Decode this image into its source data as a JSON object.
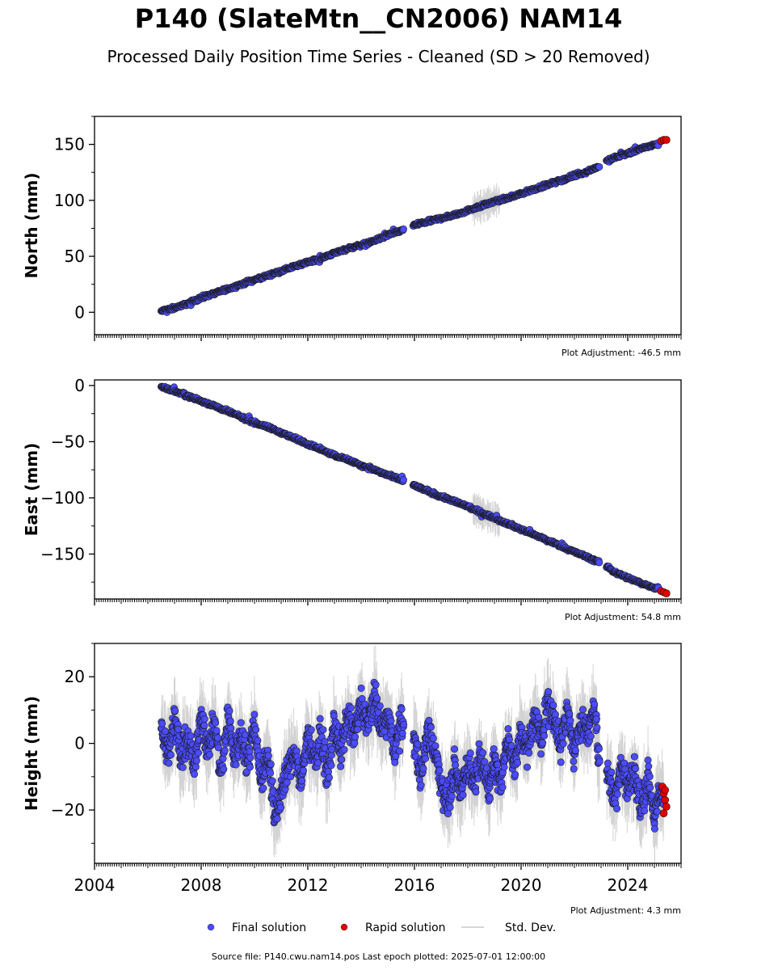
{
  "title": "P140 (SlateMtn__CN2006) NAM14",
  "subtitle": "Processed Daily Position Time Series - Cleaned (SD > 20 Removed)",
  "source_note": "Source file: P140.cwu.nam14.pos  Last epoch plotted: 2025-07-01 12:00:00",
  "colors": {
    "final": "#4b4bff",
    "rapid": "#e00000",
    "std_dev": "#b0b0b0",
    "marker_edge": "#1a1a1a"
  },
  "legend": {
    "placement": "bottom-center",
    "items": [
      {
        "label": "Final solution",
        "marker": "circle",
        "color": "#4b4bff"
      },
      {
        "label": "Rapid solution",
        "marker": "circle",
        "color": "#e00000"
      },
      {
        "label": "Std. Dev.",
        "marker": "line",
        "color": "#c8c8c8"
      }
    ]
  },
  "chart_data": [
    {
      "type": "scatter",
      "ylabel": "North (mm)",
      "xlabel": "",
      "xlim": [
        2004.0,
        2026.0
      ],
      "ylim": [
        -20,
        175
      ],
      "yticks": [
        0,
        50,
        100,
        150
      ],
      "ytick_labels": [
        "0",
        "50",
        "100",
        "150"
      ],
      "xticks": [
        2004,
        2008,
        2012,
        2016,
        2020,
        2024
      ],
      "xtick_labels": [],
      "adjustment": "Plot Adjustment: -46.5 mm",
      "series": [
        {
          "name": "Final solution",
          "x": [
            2006.5,
            2007.0,
            2007.5,
            2008.0,
            2008.5,
            2009.0,
            2009.5,
            2010.0,
            2010.5,
            2011.0,
            2011.5,
            2012.0,
            2012.5,
            2013.0,
            2013.5,
            2014.0,
            2014.5,
            2015.0,
            2015.5,
            2016.0,
            2016.5,
            2017.0,
            2017.5,
            2018.0,
            2018.5,
            2019.0,
            2019.5,
            2020.0,
            2020.5,
            2021.0,
            2021.5,
            2022.0,
            2022.5,
            2022.9,
            2023.2,
            2023.5,
            2024.0,
            2024.5,
            2025.0
          ],
          "y": [
            1,
            4,
            8,
            13,
            17,
            21,
            25,
            29,
            33,
            37,
            41,
            45,
            48,
            53,
            57,
            60,
            64,
            69,
            73,
            78,
            81,
            84,
            87,
            91,
            95,
            99,
            102,
            106,
            110,
            114,
            118,
            122,
            126,
            130,
            135,
            138,
            142,
            146,
            150
          ]
        },
        {
          "name": "Rapid solution",
          "x": [
            2025.25,
            2025.35,
            2025.45
          ],
          "y": [
            153,
            154,
            154
          ]
        }
      ],
      "gaps": [
        [
          2015.6,
          2015.95
        ],
        [
          2022.95,
          2023.2
        ]
      ]
    },
    {
      "type": "scatter",
      "ylabel": "East (mm)",
      "xlabel": "",
      "xlim": [
        2004.0,
        2026.0
      ],
      "ylim": [
        -190,
        5
      ],
      "yticks": [
        0,
        -50,
        -100,
        -150
      ],
      "ytick_labels": [
        "0",
        "−50",
        "−100",
        "−150"
      ],
      "xticks": [
        2004,
        2008,
        2012,
        2016,
        2020,
        2024
      ],
      "xtick_labels": [],
      "adjustment": "Plot Adjustment: 54.8 mm",
      "series": [
        {
          "name": "Final solution",
          "x": [
            2006.5,
            2007.0,
            2007.5,
            2008.0,
            2008.5,
            2009.0,
            2009.5,
            2010.0,
            2010.5,
            2011.0,
            2011.5,
            2012.0,
            2012.5,
            2013.0,
            2013.5,
            2014.0,
            2014.5,
            2015.0,
            2015.5,
            2016.0,
            2016.5,
            2017.0,
            2017.5,
            2018.0,
            2018.5,
            2019.0,
            2019.5,
            2020.0,
            2020.5,
            2021.0,
            2021.5,
            2022.0,
            2022.5,
            2022.9,
            2023.2,
            2023.5,
            2024.0,
            2024.5,
            2025.0
          ],
          "y": [
            -1,
            -5,
            -9,
            -14,
            -18,
            -23,
            -28,
            -33,
            -37,
            -42,
            -47,
            -52,
            -57,
            -62,
            -66,
            -71,
            -75,
            -80,
            -84,
            -89,
            -94,
            -99,
            -103,
            -108,
            -113,
            -118,
            -123,
            -128,
            -133,
            -138,
            -143,
            -148,
            -153,
            -157,
            -161,
            -166,
            -171,
            -176,
            -180
          ]
        },
        {
          "name": "Rapid solution",
          "x": [
            2025.25,
            2025.35,
            2025.45
          ],
          "y": [
            -183,
            -184,
            -185
          ]
        }
      ],
      "gaps": [
        [
          2015.6,
          2015.95
        ],
        [
          2022.95,
          2023.2
        ]
      ]
    },
    {
      "type": "scatter",
      "ylabel": "Height (mm)",
      "xlabel": "",
      "xlim": [
        2004.0,
        2026.0
      ],
      "ylim": [
        -36,
        30
      ],
      "yticks": [
        20,
        0,
        -20
      ],
      "ytick_labels": [
        "20",
        "0",
        "−20"
      ],
      "xticks": [
        2004,
        2008,
        2012,
        2016,
        2020,
        2024
      ],
      "xtick_labels": [
        "2004",
        "2008",
        "2012",
        "2016",
        "2020",
        "2024"
      ],
      "adjustment": "Plot Adjustment: 4.3 mm",
      "series": [
        {
          "name": "Final solution",
          "x": [
            2006.5,
            2006.75,
            2007.0,
            2007.25,
            2007.5,
            2007.75,
            2008.0,
            2008.25,
            2008.5,
            2008.75,
            2009.0,
            2009.25,
            2009.5,
            2009.75,
            2010.0,
            2010.25,
            2010.5,
            2010.75,
            2011.0,
            2011.25,
            2011.5,
            2011.75,
            2012.0,
            2012.25,
            2012.5,
            2012.75,
            2013.0,
            2013.25,
            2013.5,
            2013.75,
            2014.0,
            2014.25,
            2014.5,
            2014.75,
            2015.0,
            2015.25,
            2015.5,
            2015.95,
            2016.25,
            2016.5,
            2016.75,
            2017.0,
            2017.25,
            2017.5,
            2017.75,
            2018.0,
            2018.25,
            2018.5,
            2018.75,
            2019.0,
            2019.25,
            2019.5,
            2019.75,
            2020.0,
            2020.25,
            2020.5,
            2020.75,
            2021.0,
            2021.25,
            2021.5,
            2021.75,
            2022.0,
            2022.25,
            2022.5,
            2022.75,
            2022.9,
            2023.3,
            2023.5,
            2023.75,
            2024.0,
            2024.25,
            2024.5,
            2024.75,
            2025.0,
            2025.2
          ],
          "y": [
            5,
            -3,
            8,
            -5,
            2,
            -8,
            10,
            -2,
            6,
            -10,
            8,
            -4,
            3,
            -6,
            7,
            -12,
            -2,
            -22,
            -15,
            -8,
            -2,
            -12,
            3,
            -5,
            2,
            -10,
            6,
            -3,
            8,
            2,
            12,
            5,
            14,
            4,
            8,
            -2,
            6,
            3,
            -10,
            4,
            -2,
            -12,
            -18,
            -8,
            -14,
            -6,
            -12,
            -2,
            -15,
            -5,
            -12,
            2,
            -8,
            4,
            -3,
            8,
            2,
            12,
            6,
            0,
            10,
            -4,
            8,
            2,
            12,
            -3,
            -10,
            -18,
            -6,
            -14,
            -8,
            -20,
            -10,
            -22,
            -16
          ]
        },
        {
          "name": "Rapid solution",
          "x": [
            2025.3,
            2025.35,
            2025.4,
            2025.45,
            2025.35,
            2025.4
          ],
          "y": [
            -13,
            -15,
            -17,
            -19,
            -21,
            -14
          ]
        }
      ],
      "gaps": [
        [
          2015.6,
          2015.95
        ],
        [
          2022.95,
          2023.2
        ]
      ]
    }
  ]
}
